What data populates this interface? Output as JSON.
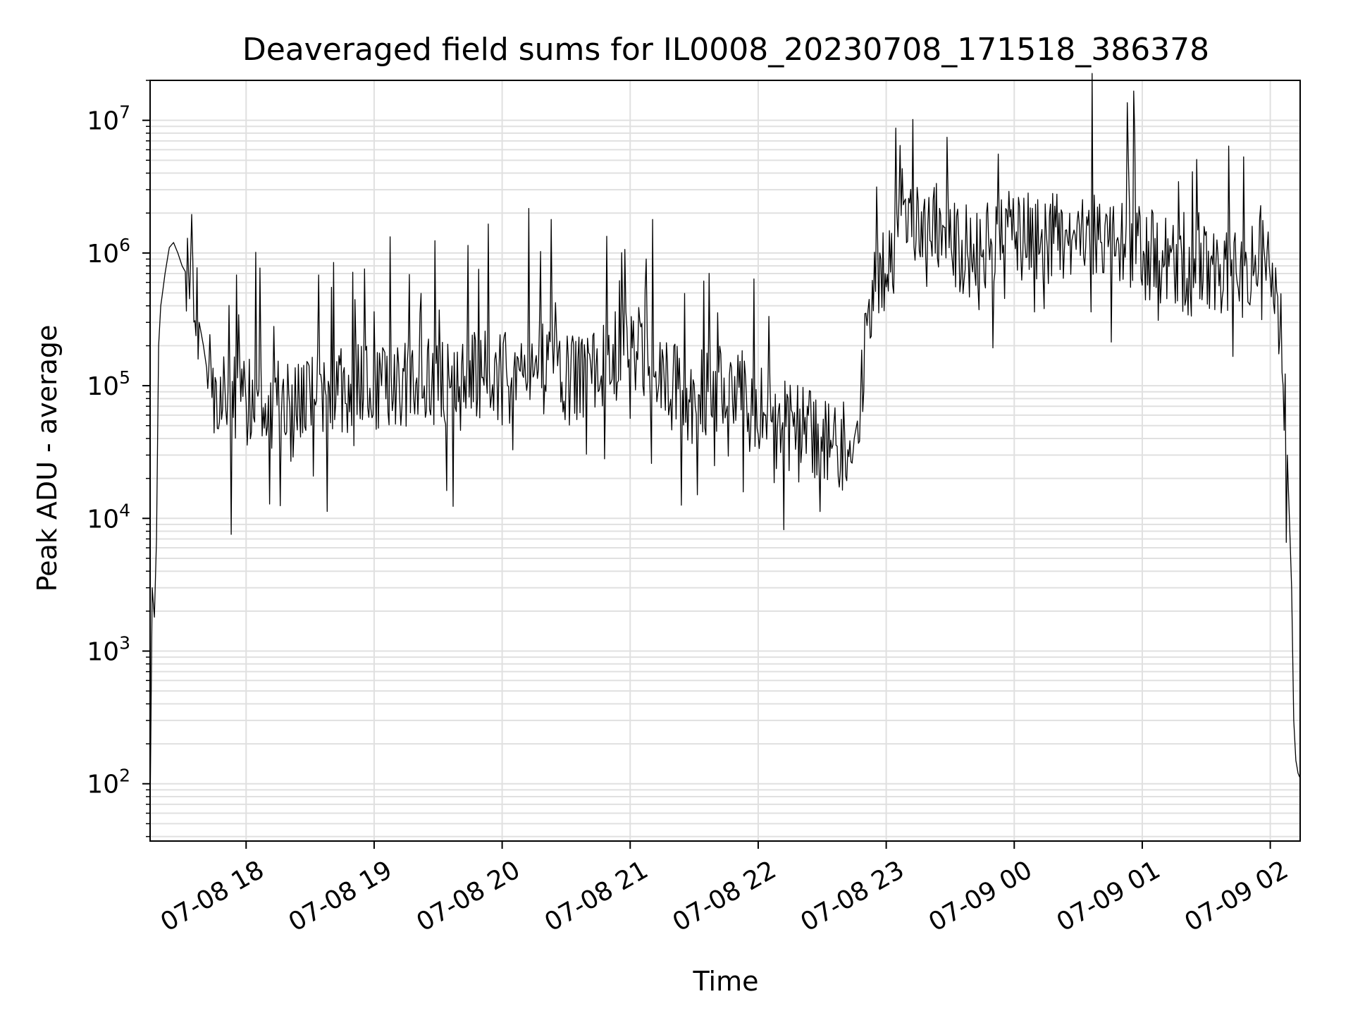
{
  "chart_data": {
    "type": "line",
    "title": "Deaveraged field sums for IL0008_20230708_171518_386378",
    "xlabel": "Time",
    "ylabel": "Peak ADU - average",
    "yscale": "log",
    "ylim": [
      37,
      20000000
    ],
    "xlim": [
      "2023-07-08 17:15",
      "2023-07-09 02:14"
    ],
    "grid": true,
    "grid_color": "#e0e0e0",
    "line_color": "#000000",
    "x_ticks": [
      {
        "time": "2023-07-08 18:00",
        "label": "07-08 18"
      },
      {
        "time": "2023-07-08 19:00",
        "label": "07-08 19"
      },
      {
        "time": "2023-07-08 20:00",
        "label": "07-08 20"
      },
      {
        "time": "2023-07-08 21:00",
        "label": "07-08 21"
      },
      {
        "time": "2023-07-08 22:00",
        "label": "07-08 22"
      },
      {
        "time": "2023-07-08 23:00",
        "label": "07-08 23"
      },
      {
        "time": "2023-07-09 00:00",
        "label": "07-09 00"
      },
      {
        "time": "2023-07-09 01:00",
        "label": "07-09 01"
      },
      {
        "time": "2023-07-09 02:00",
        "label": "07-09 02"
      }
    ],
    "y_ticks": [
      {
        "value": 100,
        "base": "10",
        "exp": "2"
      },
      {
        "value": 1000,
        "base": "10",
        "exp": "3"
      },
      {
        "value": 10000,
        "base": "10",
        "exp": "4"
      },
      {
        "value": 100000,
        "base": "10",
        "exp": "5"
      },
      {
        "value": 1000000,
        "base": "10",
        "exp": "6"
      },
      {
        "value": 10000000,
        "base": "10",
        "exp": "7"
      }
    ],
    "series": [
      {
        "x": [
          "2023-07-08 17:15",
          "2023-07-08 17:16",
          "2023-07-08 17:17",
          "2023-07-08 17:18",
          "2023-07-08 17:19",
          "2023-07-08 17:20",
          "2023-07-08 17:22",
          "2023-07-08 17:24",
          "2023-07-08 17:26",
          "2023-07-08 17:28",
          "2023-07-08 17:30",
          "2023-07-08 17:32",
          "2023-07-08 17:35",
          "2023-07-08 17:38",
          "2023-07-08 17:40",
          "2023-07-08 17:42",
          "2023-07-08 17:45",
          "2023-07-08 17:48",
          "2023-07-08 17:52",
          "2023-07-08 17:56",
          "2023-07-08 18:00",
          "2023-07-08 18:10",
          "2023-07-08 18:20",
          "2023-07-08 18:30",
          "2023-07-08 18:40",
          "2023-07-08 18:50",
          "2023-07-08 19:00",
          "2023-07-08 19:10",
          "2023-07-08 19:20",
          "2023-07-08 19:30",
          "2023-07-08 19:40",
          "2023-07-08 19:50",
          "2023-07-08 20:00",
          "2023-07-08 20:10",
          "2023-07-08 20:20",
          "2023-07-08 20:30",
          "2023-07-08 20:40",
          "2023-07-08 20:50",
          "2023-07-08 21:00",
          "2023-07-08 21:10",
          "2023-07-08 21:20",
          "2023-07-08 21:30",
          "2023-07-08 21:40",
          "2023-07-08 21:50",
          "2023-07-08 22:00",
          "2023-07-08 22:10",
          "2023-07-08 22:20",
          "2023-07-08 22:30",
          "2023-07-08 22:40",
          "2023-07-08 22:45",
          "2023-07-08 22:47",
          "2023-07-08 22:50",
          "2023-07-08 22:55",
          "2023-07-08 23:00",
          "2023-07-08 23:10",
          "2023-07-08 23:20",
          "2023-07-08 23:30",
          "2023-07-08 23:40",
          "2023-07-08 23:50",
          "2023-07-09 00:00",
          "2023-07-09 00:10",
          "2023-07-09 00:20",
          "2023-07-09 00:30",
          "2023-07-09 00:40",
          "2023-07-09 00:50",
          "2023-07-09 01:00",
          "2023-07-09 01:10",
          "2023-07-09 01:20",
          "2023-07-09 01:30",
          "2023-07-09 01:40",
          "2023-07-09 01:45",
          "2023-07-09 01:50",
          "2023-07-09 01:55",
          "2023-07-09 02:00",
          "2023-07-09 02:05",
          "2023-07-09 02:08",
          "2023-07-09 02:10",
          "2023-07-09 02:11",
          "2023-07-09 02:12",
          "2023-07-09 02:13",
          "2023-07-09 02:14"
        ],
        "values": [
          60,
          3000,
          1800,
          7000,
          200000,
          400000,
          700000,
          1100000,
          1200000,
          1000000,
          800000,
          700000,
          500000,
          300000,
          200000,
          120000,
          90000,
          80000,
          70000,
          80000,
          80000,
          70000,
          100000,
          90000,
          80000,
          100000,
          90000,
          100000,
          100000,
          110000,
          100000,
          120000,
          110000,
          150000,
          130000,
          110000,
          130000,
          150000,
          200000,
          150000,
          100000,
          80000,
          90000,
          100000,
          70000,
          50000,
          45000,
          40000,
          35000,
          40000,
          60000,
          200000,
          500000,
          800000,
          1500000,
          2000000,
          1200000,
          1000000,
          1300000,
          1500000,
          1200000,
          1300000,
          1500000,
          1400000,
          1100000,
          1000000,
          900000,
          700000,
          800000,
          700000,
          800000,
          600000,
          1200000,
          700000,
          300000,
          30000,
          3000,
          300,
          150,
          120,
          110
        ]
      }
    ]
  }
}
